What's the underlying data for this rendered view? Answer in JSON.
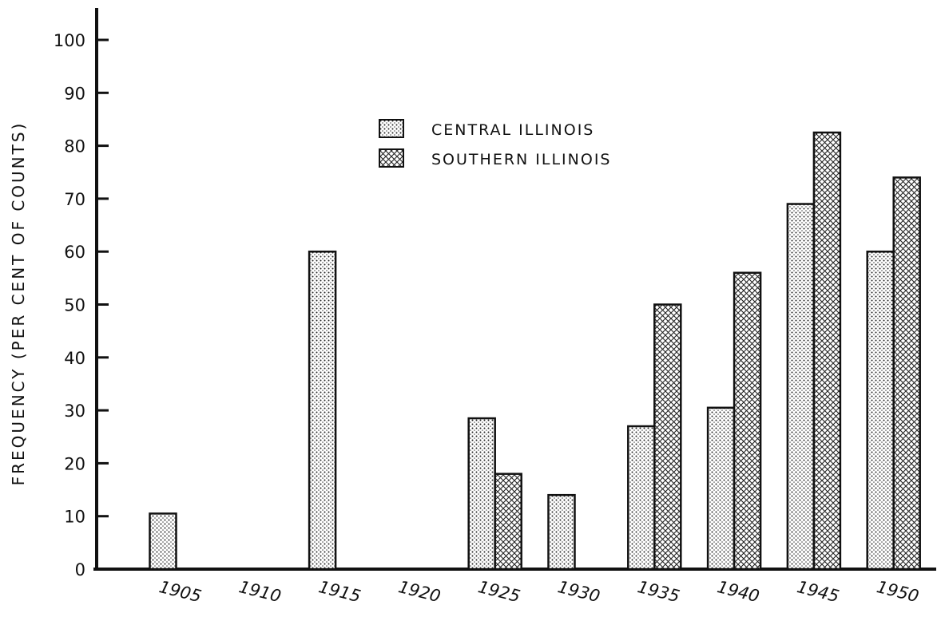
{
  "chart_data": {
    "type": "bar",
    "ylabel": "FREQUENCY (PER CENT OF COUNTS)",
    "xlabel": "",
    "title": "",
    "ylim": [
      0,
      100
    ],
    "yticks": [
      0,
      10,
      20,
      30,
      40,
      50,
      60,
      70,
      80,
      90,
      100
    ],
    "categories": [
      "1905",
      "1910",
      "1915",
      "1920",
      "1925",
      "1930",
      "1935",
      "1940",
      "1945",
      "1950"
    ],
    "series": [
      {
        "name": "CENTRAL ILLINOIS",
        "pattern": "dots",
        "values": [
          10.5,
          null,
          60,
          null,
          28.5,
          14,
          27,
          30.5,
          69,
          60
        ]
      },
      {
        "name": "SOUTHERN ILLINOIS",
        "pattern": "crosshatch",
        "values": [
          null,
          null,
          null,
          null,
          18,
          null,
          50,
          56,
          82.5,
          74
        ]
      }
    ],
    "legend_position": "top-center",
    "grid": false,
    "colors": {
      "ink": "#111111",
      "background": "#ffffff"
    }
  }
}
